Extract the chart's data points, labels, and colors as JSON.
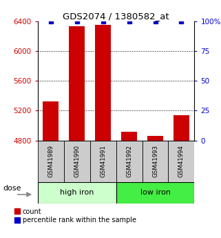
{
  "title": "GDS2074 / 1380582_at",
  "samples": [
    "GSM41989",
    "GSM41990",
    "GSM41991",
    "GSM41992",
    "GSM41993",
    "GSM41994"
  ],
  "counts": [
    5320,
    6340,
    6355,
    4920,
    4860,
    5140
  ],
  "percentile_ranks": [
    100,
    100,
    100,
    100,
    100,
    100
  ],
  "ylim_left": [
    4800,
    6400
  ],
  "ylim_right": [
    0,
    100
  ],
  "yticks_left": [
    4800,
    5200,
    5600,
    6000,
    6400
  ],
  "yticks_right": [
    0,
    25,
    50,
    75,
    100
  ],
  "ytick_right_labels": [
    "0",
    "25",
    "50",
    "75",
    "100%"
  ],
  "grid_lines": [
    5200,
    5600,
    6000
  ],
  "bar_color": "#cc0000",
  "dot_color": "#0000cc",
  "bar_width": 0.6,
  "left_tick_color": "#cc0000",
  "right_tick_color": "#0000cc",
  "sample_label_color": "#cccccc",
  "group_high_color": "#ccffcc",
  "group_low_color": "#44ee44",
  "dose_label": "dose",
  "legend_items": [
    "count",
    "percentile rank within the sample"
  ]
}
